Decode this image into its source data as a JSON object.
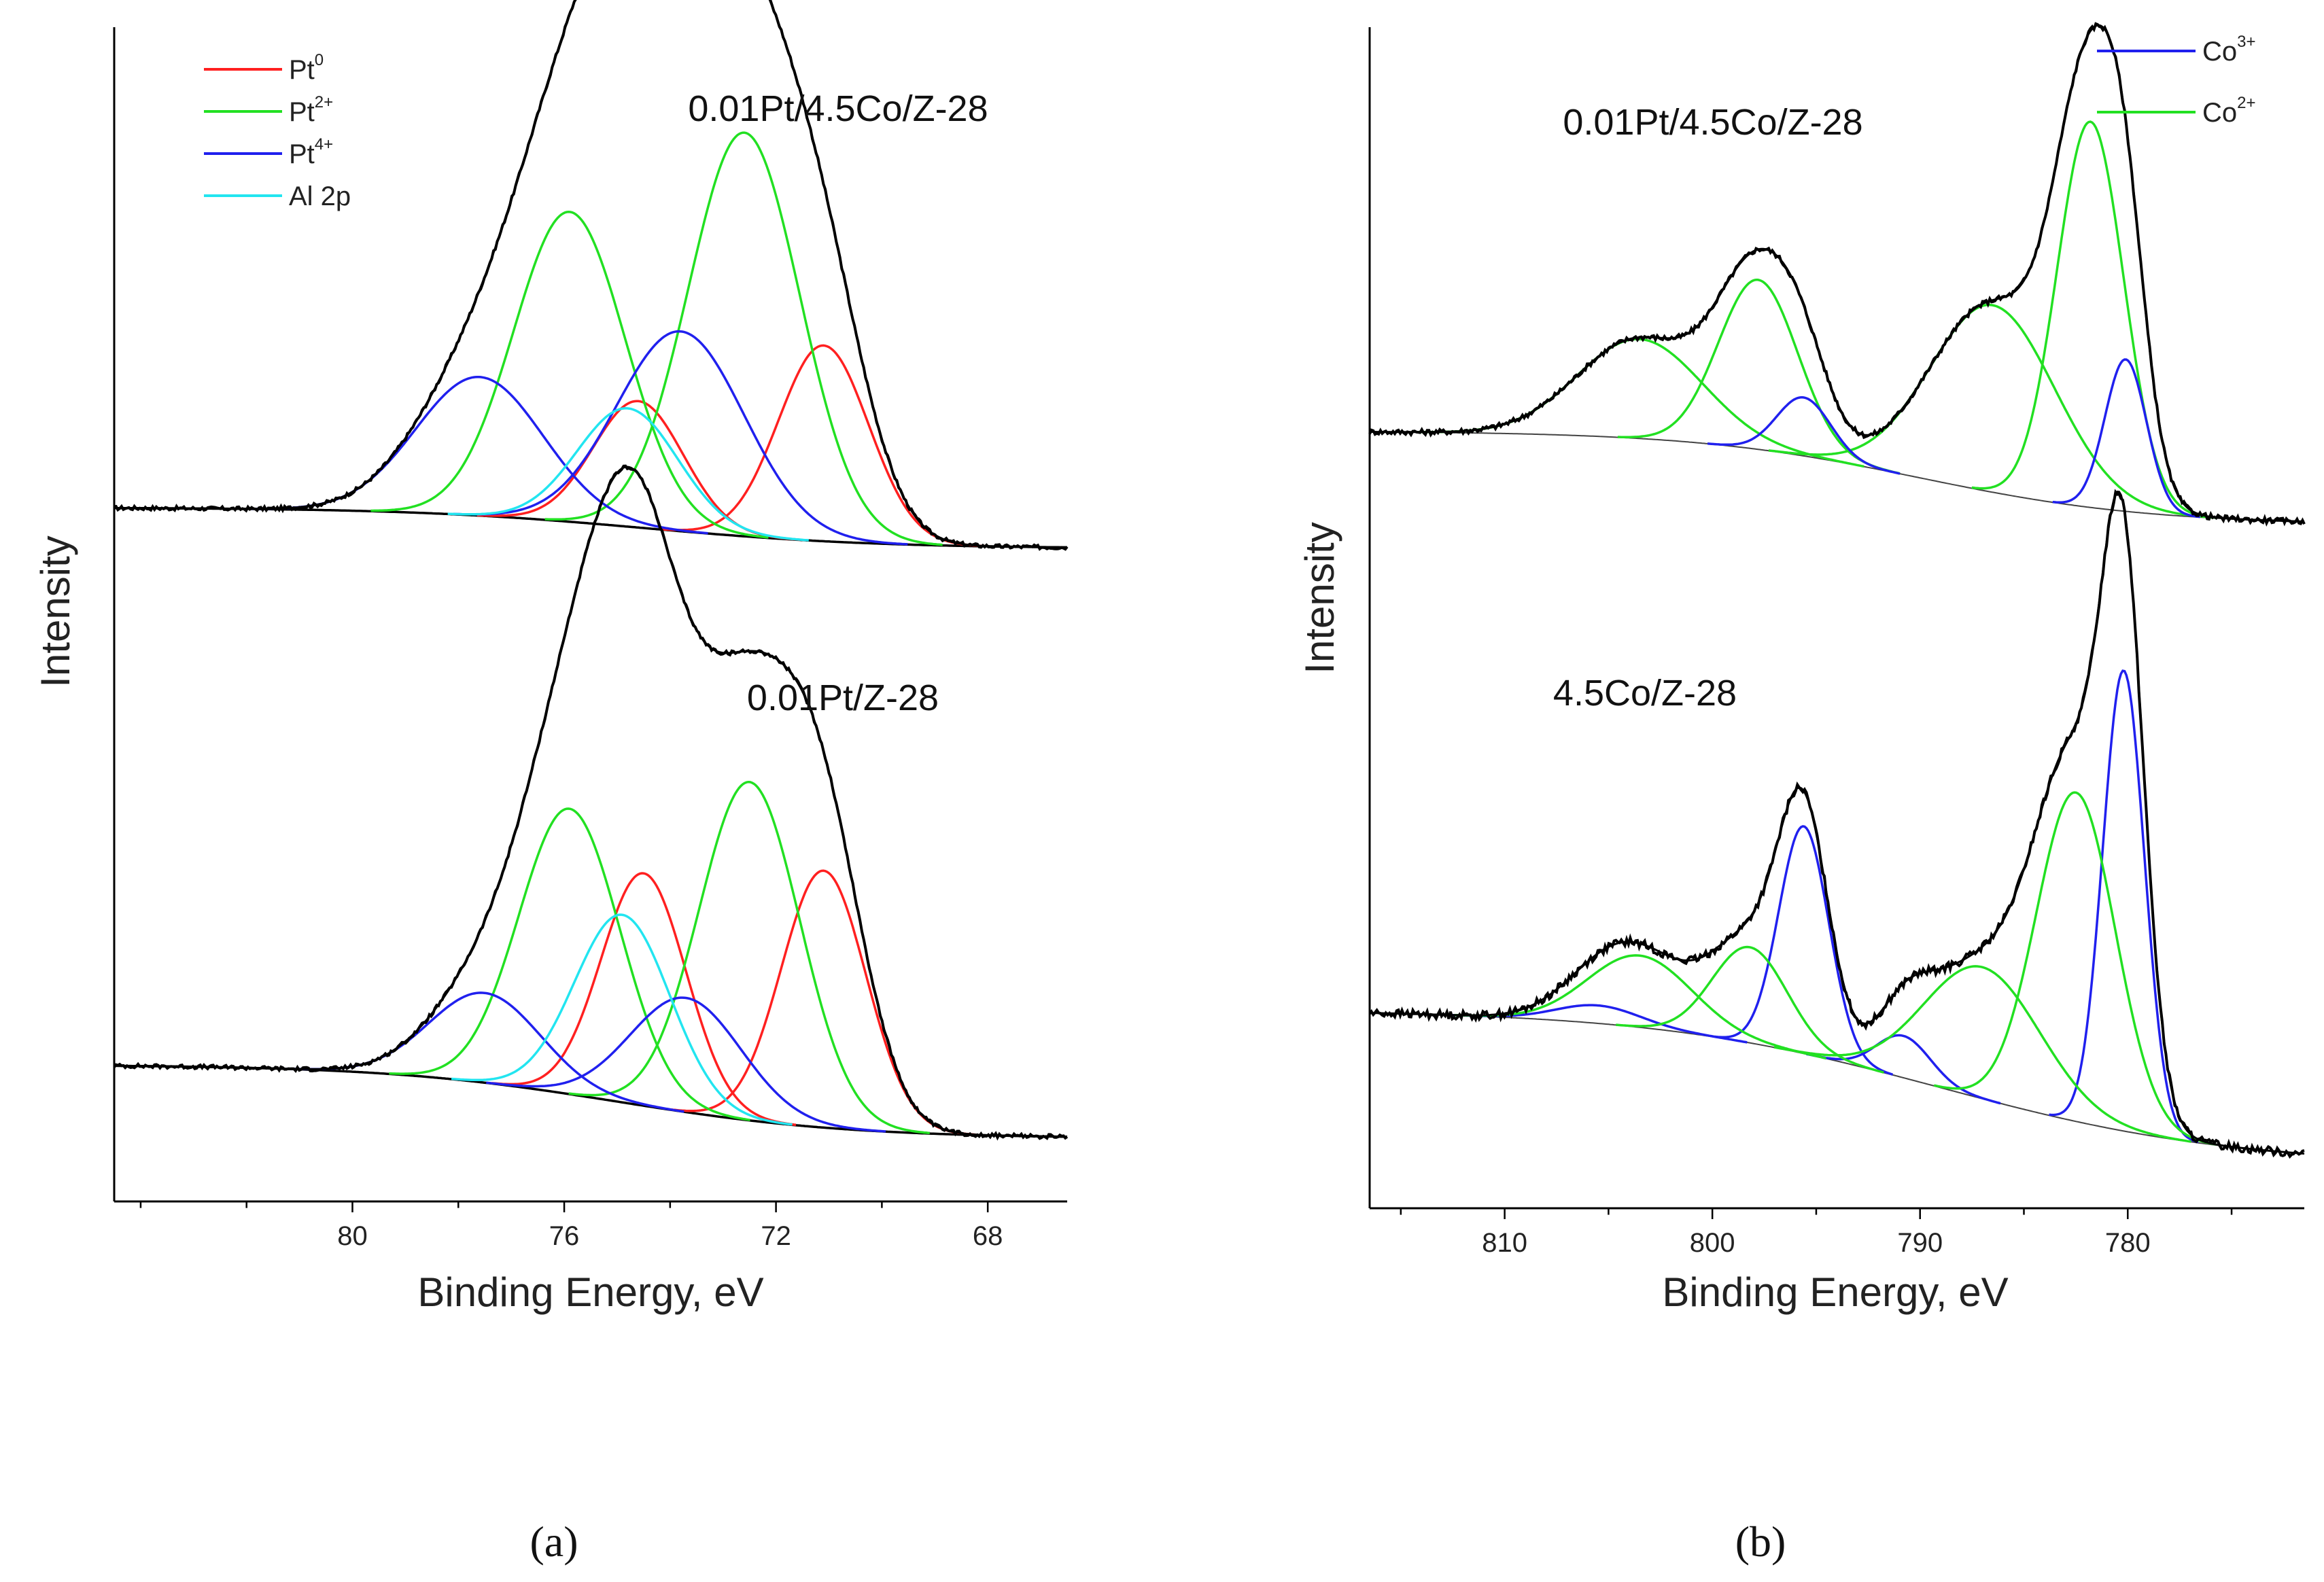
{
  "chart_data": [
    {
      "type": "line",
      "panel": "a",
      "panel_label": "(a)",
      "xlabel": "Binding Energy, eV",
      "ylabel": "Intensity",
      "xlim": [
        84.5,
        66.5
      ],
      "xticks": [
        80,
        76,
        72,
        68
      ],
      "legend": {
        "position": "top-left",
        "entries": [
          {
            "name": "Pt",
            "sup": "0",
            "color": "#ff2020"
          },
          {
            "name": "Pt",
            "sup": "2+",
            "color": "#22e022"
          },
          {
            "name": "Pt",
            "sup": "4+",
            "color": "#2020ee"
          },
          {
            "name": "Al 2p",
            "sup": "",
            "color": "#22e5f0"
          }
        ]
      },
      "spectra": [
        {
          "sample": "0.01Pt/4.5Co/Z-28",
          "position": "top",
          "baseline": {
            "left": 1.0,
            "right": 0.0,
            "center": 74.5,
            "width": 2.2
          },
          "peaks": [
            {
              "component": "Pt0",
              "color": "#ff2020",
              "center": 71.1,
              "height": 4.8,
              "width": 0.85
            },
            {
              "component": "Pt0",
              "color": "#ff2020",
              "center": 74.6,
              "height": 3.1,
              "width": 0.85
            },
            {
              "component": "Pt2+",
              "color": "#22e022",
              "center": 72.6,
              "height": 9.9,
              "width": 1.05
            },
            {
              "component": "Pt2+",
              "color": "#22e022",
              "center": 75.9,
              "height": 7.6,
              "width": 1.05
            },
            {
              "component": "Pt4+",
              "color": "#2020ee",
              "center": 73.8,
              "height": 4.9,
              "width": 1.2
            },
            {
              "component": "Pt4+",
              "color": "#2020ee",
              "center": 77.6,
              "height": 3.4,
              "width": 1.2
            },
            {
              "component": "Al 2p",
              "color": "#22e5f0",
              "center": 74.8,
              "height": 2.9,
              "width": 0.95
            }
          ]
        },
        {
          "sample": "0.01Pt/Z-28",
          "position": "bottom",
          "baseline": {
            "left": 1.8,
            "right": 0.0,
            "center": 75.0,
            "width": 2.2
          },
          "peaks": [
            {
              "component": "Pt0",
              "color": "#ff2020",
              "center": 71.1,
              "height": 6.3,
              "width": 0.8
            },
            {
              "component": "Pt0",
              "color": "#ff2020",
              "center": 74.5,
              "height": 5.7,
              "width": 0.8
            },
            {
              "component": "Pt2+",
              "color": "#22e022",
              "center": 72.5,
              "height": 8.3,
              "width": 0.95
            },
            {
              "component": "Pt2+",
              "color": "#22e022",
              "center": 75.9,
              "height": 7.0,
              "width": 0.95
            },
            {
              "component": "Pt4+",
              "color": "#2020ee",
              "center": 73.7,
              "height": 2.8,
              "width": 1.05
            },
            {
              "component": "Pt4+",
              "color": "#2020ee",
              "center": 77.5,
              "height": 2.2,
              "width": 1.05
            },
            {
              "component": "Al 2p",
              "color": "#22e5f0",
              "center": 74.9,
              "height": 4.6,
              "width": 0.9
            }
          ]
        }
      ]
    },
    {
      "type": "line",
      "panel": "b",
      "panel_label": "(b)",
      "xlabel": "Binding Energy, eV",
      "ylabel": "Intensity",
      "xlim": [
        816.5,
        771.5
      ],
      "xticks": [
        810,
        800,
        790,
        780
      ],
      "legend": {
        "position": "top-right",
        "entries": [
          {
            "name": "Co",
            "sup": "3+",
            "color": "#2020ee"
          },
          {
            "name": "Co",
            "sup": "2+",
            "color": "#22e022"
          }
        ]
      },
      "spectra": [
        {
          "sample": "0.01Pt/4.5Co/Z-28",
          "position": "top",
          "baseline": {
            "left": 1.6,
            "right": 0.0,
            "center": 790.0,
            "width": 5.5
          },
          "peaks": [
            {
              "component": "Co2+",
              "color": "#22e022",
              "center": 781.8,
              "height": 6.6,
              "width": 1.6
            },
            {
              "component": "Co2+",
              "color": "#22e022",
              "center": 786.5,
              "height": 3.2,
              "width": 3.0
            },
            {
              "component": "Co2+",
              "color": "#22e022",
              "center": 797.8,
              "height": 2.9,
              "width": 1.9
            },
            {
              "component": "Co2+",
              "color": "#22e022",
              "center": 803.5,
              "height": 1.7,
              "width": 3.0
            },
            {
              "component": "Co3+",
              "color": "#2020ee",
              "center": 780.1,
              "height": 2.6,
              "width": 1.0
            },
            {
              "component": "Co3+",
              "color": "#2020ee",
              "center": 795.6,
              "height": 1.0,
              "width": 1.3
            }
          ]
        },
        {
          "sample": "4.5Co/Z-28",
          "position": "bottom",
          "baseline": {
            "left": 2.6,
            "right": 0.0,
            "center": 789.0,
            "width": 7.0
          },
          "peaks": [
            {
              "component": "Co3+",
              "color": "#2020ee",
              "center": 780.2,
              "height": 7.7,
              "width": 1.0
            },
            {
              "component": "Co3+",
              "color": "#2020ee",
              "center": 795.6,
              "height": 3.8,
              "width": 1.2
            },
            {
              "component": "Co3+",
              "color": "#2020ee",
              "center": 790.8,
              "height": 0.7,
              "width": 1.3
            },
            {
              "component": "Co3+",
              "color": "#2020ee",
              "center": 805.5,
              "height": 0.3,
              "width": 2.0
            },
            {
              "component": "Co2+",
              "color": "#22e022",
              "center": 782.5,
              "height": 5.5,
              "width": 1.9
            },
            {
              "component": "Co2+",
              "color": "#22e022",
              "center": 787.0,
              "height": 2.2,
              "width": 2.8
            },
            {
              "component": "Co2+",
              "color": "#22e022",
              "center": 798.2,
              "height": 1.6,
              "width": 1.8
            },
            {
              "component": "Co2+",
              "color": "#22e022",
              "center": 803.5,
              "height": 1.2,
              "width": 2.5
            }
          ]
        }
      ]
    }
  ]
}
